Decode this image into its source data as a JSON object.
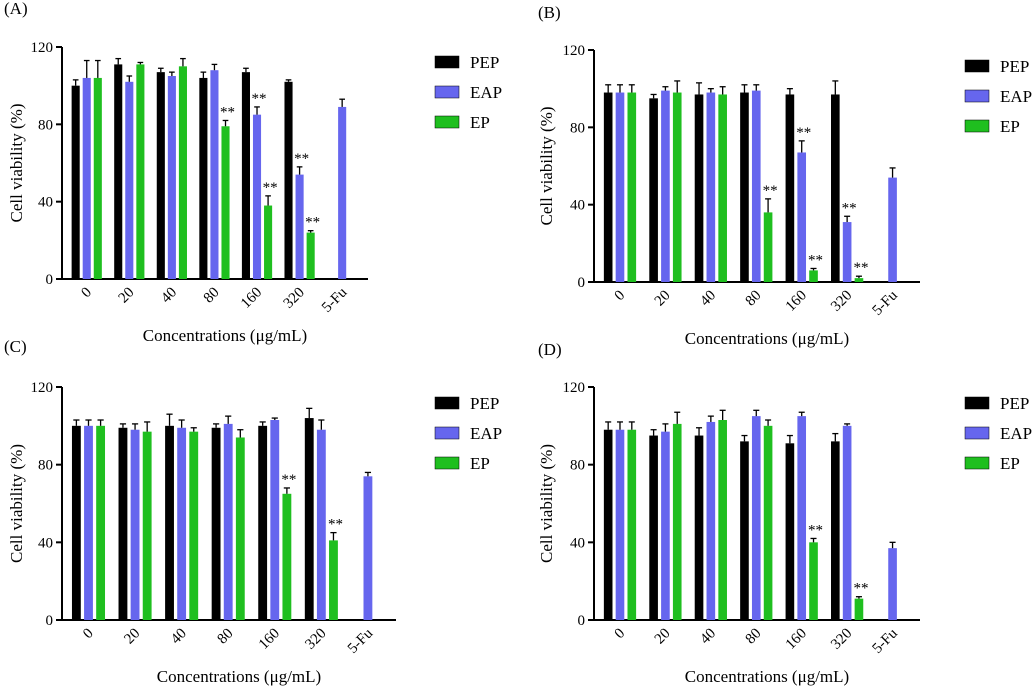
{
  "figure": {
    "series_colors": {
      "PEP": "#000000",
      "EAP": "#6666ee",
      "EP": "#1fbf1f"
    }
  },
  "chart_data": [
    {
      "type": "bar",
      "panel_label": "(A)",
      "categories": [
        "0",
        "20",
        "40",
        "80",
        "160",
        "320",
        "5-Fu"
      ],
      "xlabel": "Concentrations (μg/mL)",
      "ylabel": "Cell viability (%)",
      "ylim": [
        0,
        120
      ],
      "yticks": [
        "0",
        "40",
        "80",
        "120"
      ],
      "legend": "right",
      "series": [
        {
          "name": "PEP",
          "values": [
            100,
            111,
            107,
            104,
            107,
            102,
            null
          ],
          "errors": [
            3,
            3,
            2,
            3,
            2,
            1,
            null
          ]
        },
        {
          "name": "EAP",
          "values": [
            104,
            102,
            105,
            108,
            85,
            54,
            89
          ],
          "errors": [
            9,
            3,
            2,
            3,
            4,
            4,
            4
          ]
        },
        {
          "name": "EP",
          "values": [
            104,
            111,
            110,
            79,
            38,
            24,
            null
          ],
          "errors": [
            9,
            1,
            4,
            3,
            5,
            1,
            null
          ]
        }
      ],
      "annotations": [
        {
          "category": "80",
          "series": "EP",
          "text": "**"
        },
        {
          "category": "160",
          "series": "EAP",
          "text": "**"
        },
        {
          "category": "160",
          "series": "EP",
          "text": "**"
        },
        {
          "category": "320",
          "series": "EAP",
          "text": "**"
        },
        {
          "category": "320",
          "series": "EP",
          "text": "**"
        }
      ]
    },
    {
      "type": "bar",
      "panel_label": "(B)",
      "categories": [
        "0",
        "20",
        "40",
        "80",
        "160",
        "320",
        "5-Fu"
      ],
      "xlabel": "Concentrations (μg/mL)",
      "ylabel": "Cell viability (%)",
      "ylim": [
        0,
        120
      ],
      "yticks": [
        "0",
        "40",
        "80",
        "120"
      ],
      "legend": "right",
      "series": [
        {
          "name": "PEP",
          "values": [
            98,
            95,
            97,
            98,
            97,
            97,
            null
          ],
          "errors": [
            4,
            2,
            6,
            4,
            3,
            7,
            null
          ]
        },
        {
          "name": "EAP",
          "values": [
            98,
            99,
            98,
            99,
            67,
            31,
            54
          ],
          "errors": [
            4,
            2,
            2,
            3,
            6,
            3,
            5
          ]
        },
        {
          "name": "EP",
          "values": [
            98,
            98,
            97,
            36,
            6,
            2,
            null
          ],
          "errors": [
            4,
            6,
            4,
            7,
            1,
            1,
            null
          ]
        }
      ],
      "annotations": [
        {
          "category": "80",
          "series": "EP",
          "text": "**"
        },
        {
          "category": "160",
          "series": "EAP",
          "text": "**"
        },
        {
          "category": "160",
          "series": "EP",
          "text": "**"
        },
        {
          "category": "320",
          "series": "EAP",
          "text": "**"
        },
        {
          "category": "320",
          "series": "EP",
          "text": "**"
        }
      ]
    },
    {
      "type": "bar",
      "panel_label": "(C)",
      "categories": [
        "0",
        "20",
        "40",
        "80",
        "160",
        "320",
        "5-Fu"
      ],
      "xlabel": "Concentrations (μg/mL)",
      "ylabel": "Cell viability (%)",
      "ylim": [
        0,
        120
      ],
      "yticks": [
        "0",
        "40",
        "80",
        "120"
      ],
      "legend": "right",
      "series": [
        {
          "name": "PEP",
          "values": [
            100,
            99,
            100,
            99,
            100,
            104,
            null
          ],
          "errors": [
            3,
            2,
            6,
            2,
            2,
            5,
            null
          ]
        },
        {
          "name": "EAP",
          "values": [
            100,
            98,
            99,
            101,
            103,
            98,
            74
          ],
          "errors": [
            3,
            3,
            4,
            4,
            1,
            5,
            2
          ]
        },
        {
          "name": "EP",
          "values": [
            100,
            97,
            97,
            94,
            65,
            41,
            null
          ],
          "errors": [
            3,
            5,
            2,
            4,
            3,
            4,
            null
          ]
        }
      ],
      "annotations": [
        {
          "category": "160",
          "series": "EP",
          "text": "**"
        },
        {
          "category": "320",
          "series": "EP",
          "text": "**"
        }
      ]
    },
    {
      "type": "bar",
      "panel_label": "(D)",
      "categories": [
        "0",
        "20",
        "40",
        "80",
        "160",
        "320",
        "5-Fu"
      ],
      "xlabel": "Concentrations (μg/mL)",
      "ylabel": "Cell viability (%)",
      "ylim": [
        0,
        120
      ],
      "yticks": [
        "0",
        "40",
        "80",
        "120"
      ],
      "legend": "right",
      "series": [
        {
          "name": "PEP",
          "values": [
            98,
            95,
            95,
            92,
            91,
            92,
            null
          ],
          "errors": [
            4,
            3,
            4,
            3,
            4,
            4,
            null
          ]
        },
        {
          "name": "EAP",
          "values": [
            98,
            97,
            102,
            105,
            105,
            100,
            37
          ],
          "errors": [
            4,
            4,
            3,
            3,
            2,
            1,
            3
          ]
        },
        {
          "name": "EP",
          "values": [
            98,
            101,
            103,
            100,
            40,
            11,
            null
          ],
          "errors": [
            4,
            6,
            5,
            3,
            2,
            1,
            null
          ]
        }
      ],
      "annotations": [
        {
          "category": "160",
          "series": "EP",
          "text": "**"
        },
        {
          "category": "320",
          "series": "EP",
          "text": "**"
        }
      ]
    }
  ]
}
